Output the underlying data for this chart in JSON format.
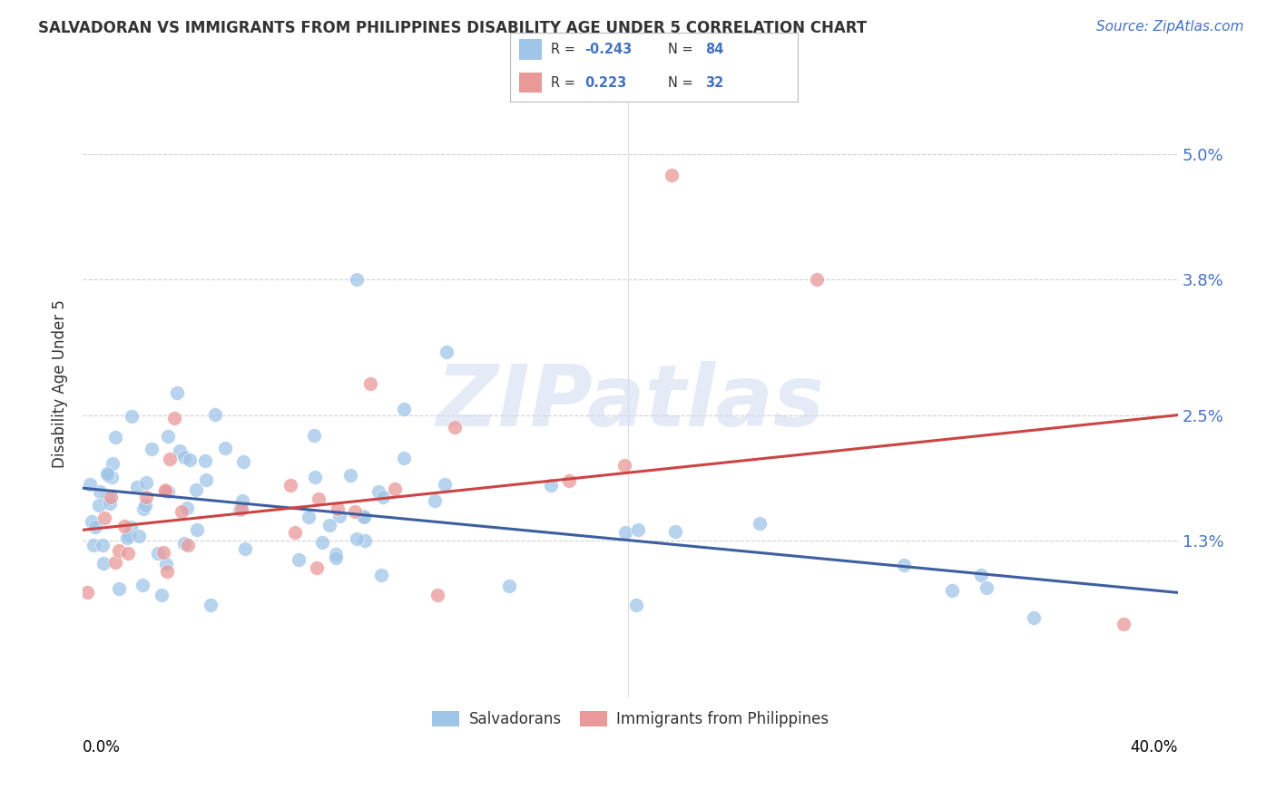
{
  "title": "SALVADORAN VS IMMIGRANTS FROM PHILIPPINES DISABILITY AGE UNDER 5 CORRELATION CHART",
  "source": "Source: ZipAtlas.com",
  "ylabel": "Disability Age Under 5",
  "ytick_vals": [
    0.013,
    0.025,
    0.038,
    0.05
  ],
  "ytick_labels": [
    "1.3%",
    "2.5%",
    "3.8%",
    "5.0%"
  ],
  "xlim": [
    0.0,
    0.4
  ],
  "ylim": [
    -0.002,
    0.058
  ],
  "color_blue": "#9FC5E8",
  "color_pink": "#EA9999",
  "color_line_blue": "#3D5FA0",
  "color_line_pink": "#CC4444",
  "background_color": "#FFFFFF",
  "grid_color": "#CCCCCC",
  "watermark": "ZIPatlas",
  "title_fontsize": 12,
  "source_fontsize": 11,
  "R_sal": -0.243,
  "N_sal": 84,
  "R_phi": 0.223,
  "N_phi": 32,
  "sal_line_x0": 0.0,
  "sal_line_y0": 0.018,
  "sal_line_x1": 0.4,
  "sal_line_y1": 0.008,
  "phi_line_x0": 0.0,
  "phi_line_y0": 0.014,
  "phi_line_x1": 0.4,
  "phi_line_y1": 0.025
}
